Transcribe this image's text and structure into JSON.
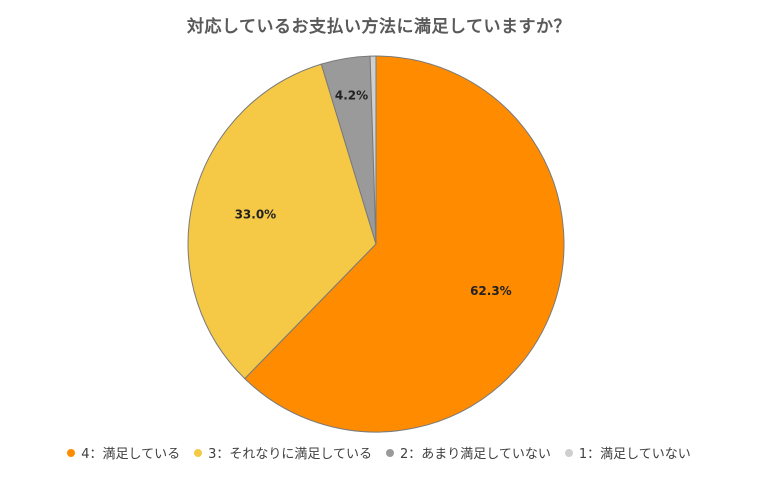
{
  "chart_data": {
    "type": "pie",
    "title": "対応しているお支払い方法に満足していますか？",
    "categories": [
      "4：満足している",
      "3：それなりに満足している",
      "2：あまり満足していない",
      "1：満足していない"
    ],
    "values": [
      62.3,
      33.0,
      4.2,
      0.5
    ],
    "data_labels": [
      "62.3%",
      "33.0%",
      "4.2%",
      ""
    ],
    "colors": [
      "#FF8C00",
      "#F5C945",
      "#9A9A9A",
      "#CFCFCF"
    ],
    "legend_position": "bottom"
  }
}
